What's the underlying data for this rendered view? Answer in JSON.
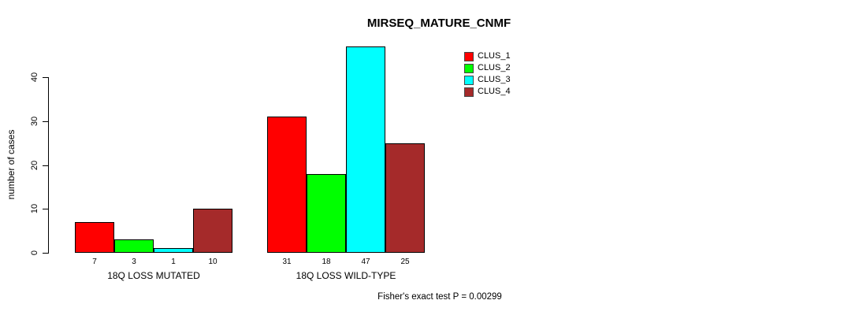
{
  "title": "MIRSEQ_MATURE_CNMF",
  "y_axis": {
    "label": "number of cases",
    "ticks": [
      "0",
      "10",
      "20",
      "30",
      "40"
    ]
  },
  "legend": {
    "items": [
      {
        "label": "CLUS_1",
        "color": "#ff0000"
      },
      {
        "label": "CLUS_2",
        "color": "#00ff00"
      },
      {
        "label": "CLUS_3",
        "color": "#00ffff"
      },
      {
        "label": "CLUS_4",
        "color": "#a52a2a"
      }
    ]
  },
  "footer": "Fisher's exact test P = 0.00299",
  "chart_data": {
    "type": "bar",
    "title": "MIRSEQ_MATURE_CNMF",
    "xlabel": "",
    "ylabel": "number of cases",
    "ylim": [
      0,
      47
    ],
    "yticks": [
      0,
      10,
      20,
      30,
      40
    ],
    "grid": false,
    "legend_position": "top-right",
    "bar_border_color": "#000000",
    "series": [
      {
        "name": "CLUS_1",
        "color": "#ff0000"
      },
      {
        "name": "CLUS_2",
        "color": "#00ff00"
      },
      {
        "name": "CLUS_3",
        "color": "#00ffff"
      },
      {
        "name": "CLUS_4",
        "color": "#a52a2a"
      }
    ],
    "groups": [
      {
        "label": "18Q LOSS MUTATED",
        "values": [
          7,
          3,
          1,
          10
        ],
        "bar_labels": [
          "7",
          "3",
          "1",
          "10"
        ]
      },
      {
        "label": "18Q LOSS WILD-TYPE",
        "values": [
          31,
          18,
          47,
          25
        ],
        "bar_labels": [
          "31",
          "18",
          "47",
          "25"
        ]
      }
    ],
    "annotation": "Fisher's exact test P = 0.00299"
  }
}
